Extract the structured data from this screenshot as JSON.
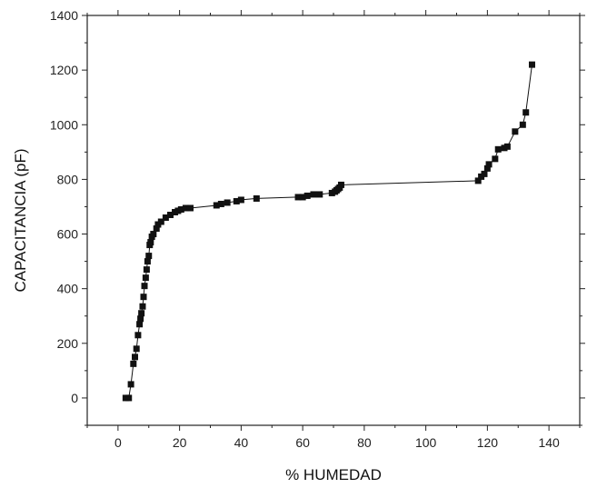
{
  "chart_data": {
    "type": "scatter",
    "title": "",
    "xlabel": "% HUMEDAD",
    "ylabel": "CAPACITANCIA (pF)",
    "xlim": [
      -10,
      150
    ],
    "ylim": [
      -100,
      1400
    ],
    "x_ticks": [
      0,
      20,
      40,
      60,
      80,
      100,
      120,
      140
    ],
    "y_ticks": [
      0,
      200,
      400,
      600,
      800,
      1000,
      1200,
      1400
    ],
    "grid": false,
    "legend": "none",
    "marker": "square",
    "connected": true,
    "color": "#111111",
    "series": [
      {
        "x": [
          2.5,
          3.5,
          4.2,
          5.0,
          5.5,
          6.0,
          6.5,
          7.0,
          7.3,
          7.6,
          8.0,
          8.3,
          8.6,
          9.0,
          9.3,
          9.6,
          10.0,
          10.3,
          10.6,
          11.0,
          11.5,
          12.5,
          13.0,
          14.0,
          15.5,
          17.0,
          18.5,
          19.5,
          20.5,
          22.0,
          23.5,
          32.0,
          33.5,
          35.5,
          38.5,
          40.0,
          45.0,
          58.5,
          60.0,
          61.5,
          63.5,
          65.5,
          69.5,
          70.5,
          71.0,
          71.5,
          72.0,
          72.5,
          117.0,
          118.0,
          119.0,
          120.0,
          120.5,
          122.5,
          123.5,
          125.5,
          126.5,
          129.0,
          131.5,
          132.5,
          134.5
        ],
        "y": [
          0,
          0,
          50,
          125,
          150,
          180,
          230,
          270,
          290,
          310,
          335,
          370,
          410,
          440,
          470,
          500,
          520,
          560,
          570,
          590,
          600,
          620,
          635,
          645,
          660,
          670,
          680,
          685,
          690,
          695,
          695,
          705,
          710,
          715,
          720,
          725,
          730,
          735,
          735,
          740,
          745,
          745,
          750,
          755,
          760,
          765,
          770,
          780,
          795,
          810,
          820,
          840,
          855,
          875,
          910,
          915,
          920,
          975,
          1000,
          1045,
          1220
        ]
      }
    ]
  }
}
